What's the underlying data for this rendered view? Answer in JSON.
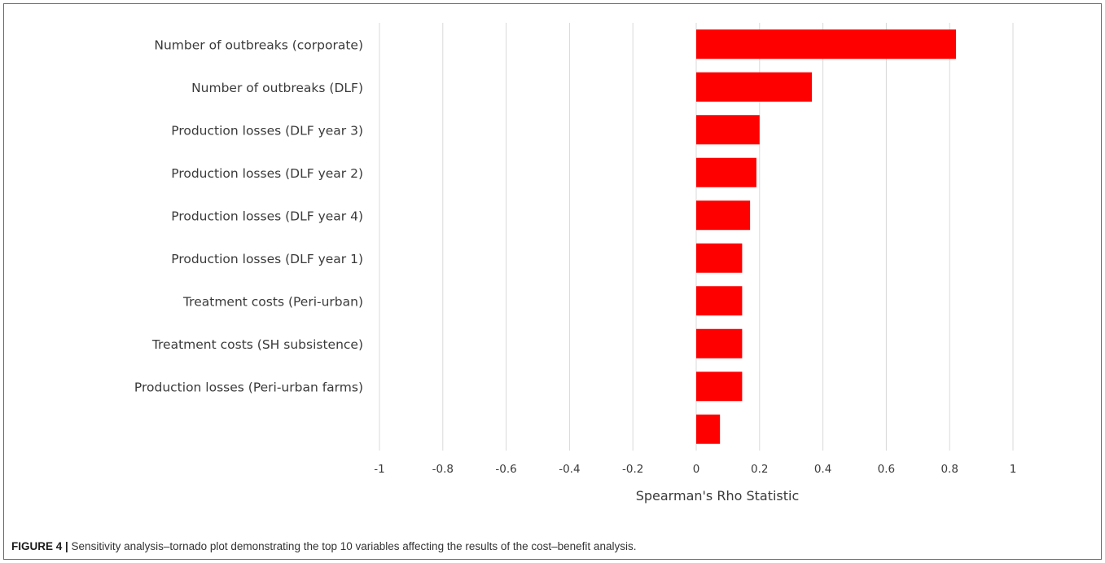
{
  "caption": {
    "label": "FIGURE 4 |",
    "text": " Sensitivity analysis–tornado plot demonstrating the top 10 variables affecting the results of the cost–benefit analysis."
  },
  "chart_data": {
    "type": "bar",
    "orientation": "horizontal",
    "categories": [
      "Number of outbreaks (corporate)",
      "Number of outbreaks (DLF)",
      "Production losses (DLF year 3)",
      "Production losses (DLF year 2)",
      "Production losses (DLF year 4)",
      "Production losses (DLF year 1)",
      "Treatment costs (Peri-urban)",
      "Treatment costs (SH subsistence)",
      "Production losses (Peri-urban farms)",
      ""
    ],
    "values": [
      0.82,
      0.365,
      0.2,
      0.19,
      0.17,
      0.145,
      0.145,
      0.145,
      0.145,
      0.075
    ],
    "xlabel": "Spearman's Rho Statistic",
    "ylabel": "",
    "xlim": [
      -1,
      1
    ],
    "xticks": [
      -1,
      -0.8,
      -0.6,
      -0.4,
      -0.2,
      0,
      0.2,
      0.4,
      0.6,
      0.8,
      1
    ],
    "xtick_labels": [
      "-1",
      "-0.8",
      "-0.6",
      "-0.4",
      "-0.2",
      "0",
      "0.2",
      "0.4",
      "0.6",
      "0.8",
      "1"
    ],
    "bar_color": "#ff0000",
    "grid_color": "#d9d9d9",
    "grid": true,
    "legend": false
  }
}
